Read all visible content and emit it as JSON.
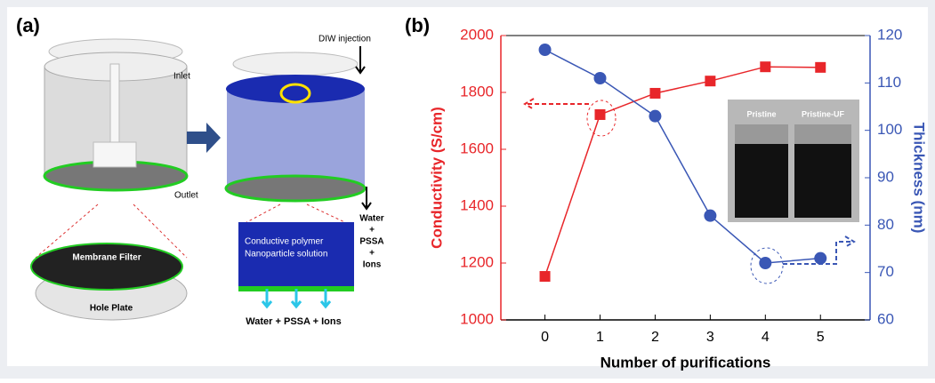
{
  "panel_a": {
    "label": "(a)",
    "inlet": "Inlet",
    "outlet": "Outlet",
    "diw": "DIW injection",
    "membrane": "Membrane Filter",
    "hole_plate": "Hole Plate",
    "solution": [
      "Conductive polymer",
      "Nanoparticle solution"
    ],
    "side": [
      "Water",
      "+",
      "PSSA",
      "+",
      "Ions"
    ],
    "bottom": "Water + PSSA + Ions"
  },
  "chart_data": {
    "type": "line",
    "label": "(b)",
    "xlabel": "Number of purifications",
    "ylabel": "Conductivity (S/cm)",
    "y2label": "Thickness (nm)",
    "x": [
      0,
      1,
      2,
      3,
      4,
      5
    ],
    "xlim": [
      -0.8,
      5.9
    ],
    "xticks": [
      0,
      1,
      2,
      3,
      4,
      5
    ],
    "ylim": [
      1000,
      2000
    ],
    "yticks": [
      1000,
      1200,
      1400,
      1600,
      1800,
      2000
    ],
    "y2lim": [
      60,
      120
    ],
    "y2ticks": [
      60,
      70,
      80,
      90,
      100,
      110,
      120
    ],
    "series": [
      {
        "color": "#e8262a",
        "marker": "square",
        "values": [
          1153,
          1722,
          1797,
          1840,
          1890,
          1888
        ]
      },
      {
        "color": "#3a57b5",
        "marker": "circle",
        "axis": "y2",
        "values": [
          117,
          111,
          103,
          82,
          72,
          73
        ]
      }
    ],
    "inset_labels": [
      "Pristine",
      "Pristine-UF"
    ]
  }
}
